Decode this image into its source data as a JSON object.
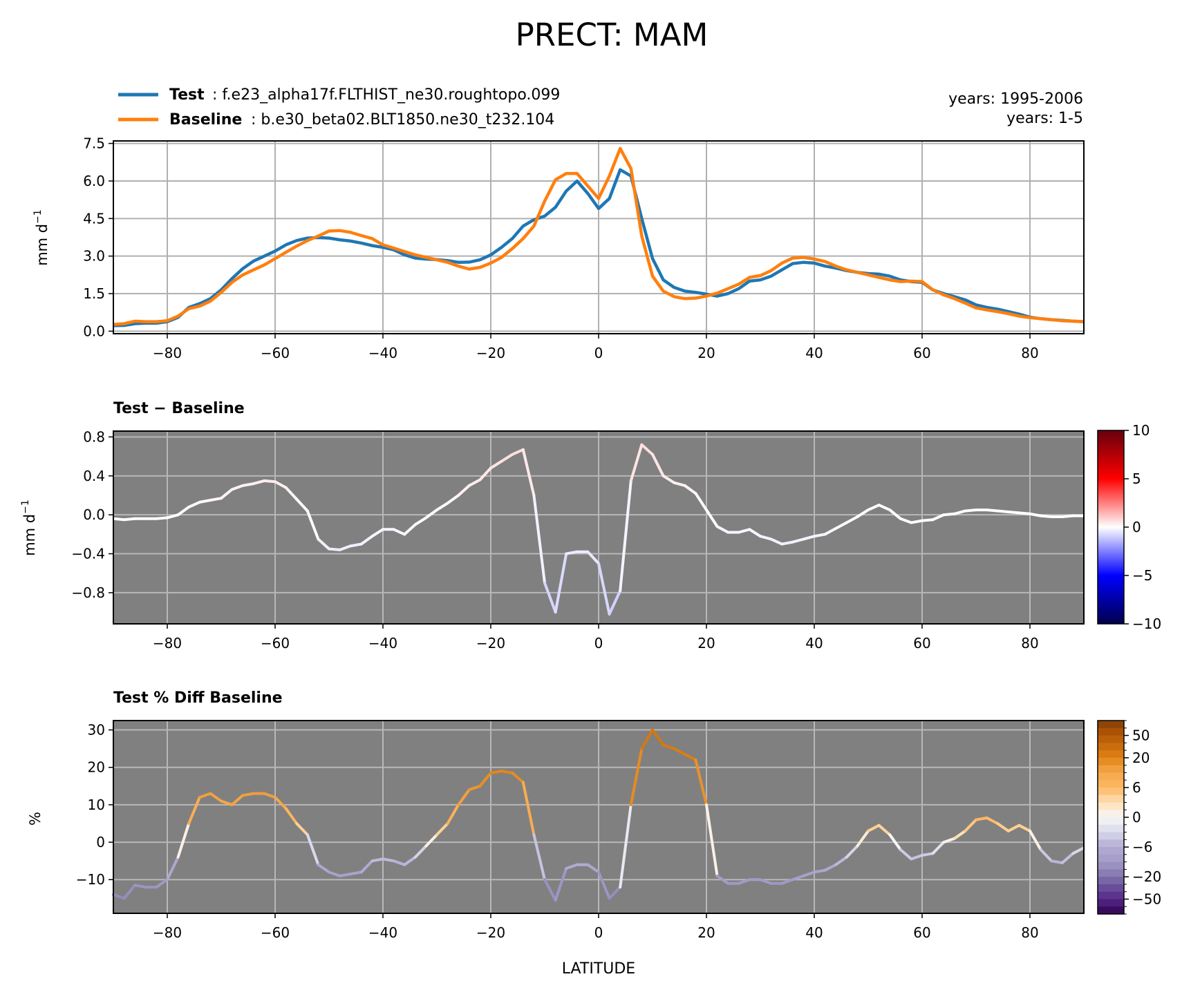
{
  "figure": {
    "title": "PRECT: MAM",
    "xlabel": "LATITUDE"
  },
  "legend": {
    "entries": [
      {
        "name": "Test",
        "case": ": f.e23_alpha17f.FLTHIST_ne30.roughtopo.099",
        "color": "#1f77b4"
      },
      {
        "name": "Baseline",
        "case": ": b.e30_beta02.BLT1850.ne30_t232.104",
        "color": "#ff7f0e"
      }
    ],
    "years_test": "years: 1995-2006",
    "years_baseline": "years: 1-5"
  },
  "chart_data": [
    {
      "type": "line",
      "panel": "mean",
      "ylabel": "mm d",
      "ylabel_sup": "−1",
      "xlim": [
        -90,
        90
      ],
      "ylim": [
        -0.1,
        7.6
      ],
      "xticks": [
        -80,
        -60,
        -40,
        -20,
        0,
        20,
        40,
        60,
        80
      ],
      "xtick_labels": [
        "−80",
        "−60",
        "−40",
        "−20",
        "0",
        "20",
        "40",
        "60",
        "80"
      ],
      "yticks": [
        0.0,
        1.5,
        3.0,
        4.5,
        6.0,
        7.5
      ],
      "ytick_labels": [
        "0.0",
        "1.5",
        "3.0",
        "4.5",
        "6.0",
        "7.5"
      ],
      "grid": true,
      "series": [
        {
          "name": "Test",
          "color": "#1f77b4",
          "x": [
            -90,
            -88,
            -86,
            -84,
            -82,
            -80,
            -78,
            -76,
            -74,
            -72,
            -70,
            -68,
            -66,
            -64,
            -62,
            -60,
            -58,
            -56,
            -54,
            -52,
            -50,
            -48,
            -46,
            -44,
            -42,
            -40,
            -38,
            -36,
            -34,
            -32,
            -30,
            -28,
            -26,
            -24,
            -22,
            -20,
            -18,
            -16,
            -14,
            -12,
            -10,
            -8,
            -6,
            -4,
            -2,
            0,
            2,
            4,
            6,
            8,
            10,
            12,
            14,
            16,
            18,
            20,
            22,
            24,
            26,
            28,
            30,
            32,
            34,
            36,
            38,
            40,
            42,
            44,
            46,
            48,
            50,
            52,
            54,
            56,
            58,
            60,
            62,
            64,
            66,
            68,
            70,
            72,
            74,
            76,
            78,
            80,
            82,
            84,
            86,
            88,
            90
          ],
          "y": [
            0.22,
            0.23,
            0.3,
            0.32,
            0.32,
            0.38,
            0.55,
            0.95,
            1.1,
            1.3,
            1.65,
            2.1,
            2.5,
            2.8,
            3.0,
            3.2,
            3.45,
            3.62,
            3.72,
            3.74,
            3.72,
            3.65,
            3.6,
            3.52,
            3.42,
            3.35,
            3.25,
            3.05,
            2.92,
            2.88,
            2.86,
            2.82,
            2.75,
            2.76,
            2.85,
            3.05,
            3.35,
            3.7,
            4.2,
            4.45,
            4.6,
            4.95,
            5.6,
            6.0,
            5.5,
            4.9,
            5.3,
            6.45,
            6.2,
            4.5,
            2.9,
            2.05,
            1.75,
            1.6,
            1.55,
            1.48,
            1.4,
            1.5,
            1.7,
            2.0,
            2.05,
            2.2,
            2.45,
            2.7,
            2.75,
            2.72,
            2.6,
            2.52,
            2.42,
            2.35,
            2.3,
            2.28,
            2.2,
            2.05,
            1.98,
            1.95,
            1.65,
            1.5,
            1.38,
            1.25,
            1.05,
            0.95,
            0.88,
            0.78,
            0.68,
            0.56,
            0.5,
            0.46,
            0.43,
            0.4,
            0.38
          ]
        },
        {
          "name": "Baseline",
          "color": "#ff7f0e",
          "x": [
            -90,
            -88,
            -86,
            -84,
            -82,
            -80,
            -78,
            -76,
            -74,
            -72,
            -70,
            -68,
            -66,
            -64,
            -62,
            -60,
            -58,
            -56,
            -54,
            -52,
            -50,
            -48,
            -46,
            -44,
            -42,
            -40,
            -38,
            -36,
            -34,
            -32,
            -30,
            -28,
            -26,
            -24,
            -22,
            -20,
            -18,
            -16,
            -14,
            -12,
            -10,
            -8,
            -6,
            -4,
            -2,
            0,
            2,
            4,
            6,
            8,
            10,
            12,
            14,
            16,
            18,
            20,
            22,
            24,
            26,
            28,
            30,
            32,
            34,
            36,
            38,
            40,
            42,
            44,
            46,
            48,
            50,
            52,
            54,
            56,
            58,
            60,
            62,
            64,
            66,
            68,
            70,
            72,
            74,
            76,
            78,
            80,
            82,
            84,
            86,
            88,
            90
          ],
          "y": [
            0.27,
            0.3,
            0.4,
            0.38,
            0.38,
            0.42,
            0.6,
            0.9,
            1.0,
            1.2,
            1.55,
            1.95,
            2.25,
            2.45,
            2.65,
            2.9,
            3.15,
            3.4,
            3.62,
            3.8,
            4.0,
            4.02,
            3.95,
            3.82,
            3.7,
            3.45,
            3.32,
            3.18,
            3.05,
            2.95,
            2.85,
            2.75,
            2.6,
            2.48,
            2.55,
            2.72,
            2.95,
            3.3,
            3.7,
            4.2,
            5.2,
            6.05,
            6.3,
            6.3,
            5.8,
            5.3,
            6.2,
            7.3,
            6.5,
            3.8,
            2.2,
            1.6,
            1.38,
            1.3,
            1.32,
            1.4,
            1.52,
            1.7,
            1.88,
            2.15,
            2.22,
            2.42,
            2.72,
            2.92,
            2.95,
            2.88,
            2.78,
            2.6,
            2.45,
            2.35,
            2.25,
            2.15,
            2.05,
            1.98,
            2.0,
            1.98,
            1.65,
            1.45,
            1.3,
            1.12,
            0.93,
            0.85,
            0.78,
            0.7,
            0.6,
            0.54,
            0.5,
            0.46,
            0.42,
            0.4,
            0.38
          ]
        }
      ]
    },
    {
      "type": "line",
      "panel": "difference",
      "title": "Test − Baseline",
      "ylabel": "mm d",
      "ylabel_sup": "−1",
      "xlim": [
        -90,
        90
      ],
      "ylim": [
        -1.12,
        0.86
      ],
      "xticks": [
        -80,
        -60,
        -40,
        -20,
        0,
        20,
        40,
        60,
        80
      ],
      "xtick_labels": [
        "−80",
        "−60",
        "−40",
        "−20",
        "0",
        "20",
        "40",
        "60",
        "80"
      ],
      "yticks": [
        -0.8,
        -0.4,
        0.0,
        0.4,
        0.8
      ],
      "ytick_labels": [
        "−0.8",
        "−0.4",
        "0.0",
        "0.4",
        "0.8"
      ],
      "grid": true,
      "background": "#808080",
      "colormap": "bwr",
      "color_range": [
        -10,
        10
      ],
      "colorbar_ticks": [
        10,
        5,
        0,
        -5,
        -10
      ],
      "colorbar_tick_labels": [
        "10",
        "5",
        "0",
        "−5",
        "−10"
      ],
      "series": [
        {
          "name": "Test − Baseline",
          "x": [
            -90,
            -88,
            -86,
            -84,
            -82,
            -80,
            -78,
            -76,
            -74,
            -72,
            -70,
            -68,
            -66,
            -64,
            -62,
            -60,
            -58,
            -56,
            -54,
            -52,
            -50,
            -48,
            -46,
            -44,
            -42,
            -40,
            -38,
            -36,
            -34,
            -32,
            -30,
            -28,
            -26,
            -24,
            -22,
            -20,
            -18,
            -16,
            -14,
            -12,
            -10,
            -8,
            -6,
            -4,
            -2,
            0,
            2,
            4,
            6,
            8,
            10,
            12,
            14,
            16,
            18,
            20,
            22,
            24,
            26,
            28,
            30,
            32,
            34,
            36,
            38,
            40,
            42,
            44,
            46,
            48,
            50,
            52,
            54,
            56,
            58,
            60,
            62,
            64,
            66,
            68,
            70,
            72,
            74,
            76,
            78,
            80,
            82,
            84,
            86,
            88,
            90
          ],
          "y": [
            -0.04,
            -0.05,
            -0.04,
            -0.04,
            -0.04,
            -0.03,
            0.0,
            0.08,
            0.13,
            0.15,
            0.17,
            0.26,
            0.3,
            0.32,
            0.35,
            0.34,
            0.28,
            0.16,
            0.04,
            -0.25,
            -0.35,
            -0.36,
            -0.32,
            -0.3,
            -0.22,
            -0.15,
            -0.15,
            -0.2,
            -0.1,
            -0.03,
            0.05,
            0.12,
            0.2,
            0.3,
            0.36,
            0.48,
            0.55,
            0.62,
            0.67,
            0.2,
            -0.7,
            -1.0,
            -0.4,
            -0.38,
            -0.38,
            -0.5,
            -1.02,
            -0.78,
            0.35,
            0.72,
            0.62,
            0.4,
            0.33,
            0.3,
            0.22,
            0.05,
            -0.12,
            -0.18,
            -0.18,
            -0.15,
            -0.22,
            -0.25,
            -0.3,
            -0.28,
            -0.25,
            -0.22,
            -0.2,
            -0.14,
            -0.08,
            -0.02,
            0.05,
            0.1,
            0.05,
            -0.04,
            -0.08,
            -0.06,
            -0.05,
            0.0,
            0.01,
            0.04,
            0.05,
            0.05,
            0.04,
            0.03,
            0.02,
            0.01,
            -0.01,
            -0.02,
            -0.02,
            -0.01,
            -0.01
          ]
        }
      ]
    },
    {
      "type": "line",
      "panel": "percent_difference",
      "title": "Test % Diff Baseline",
      "ylabel": "%",
      "xlabel": "LATITUDE",
      "xlim": [
        -90,
        90
      ],
      "ylim": [
        -19,
        32.5
      ],
      "xticks": [
        -80,
        -60,
        -40,
        -20,
        0,
        20,
        40,
        60,
        80
      ],
      "xtick_labels": [
        "−80",
        "−60",
        "−40",
        "−20",
        "0",
        "20",
        "40",
        "60",
        "80"
      ],
      "yticks": [
        -10,
        0,
        10,
        20,
        30
      ],
      "ytick_labels": [
        "−10",
        "0",
        "10",
        "20",
        "30"
      ],
      "grid": true,
      "background": "#808080",
      "colormap": "PuOr_r",
      "color_range": [
        -100,
        100
      ],
      "colorbar_ticks": [
        50,
        20,
        6,
        0,
        -6,
        -20,
        -50
      ],
      "colorbar_tick_labels": [
        "50",
        "20",
        "6",
        "0",
        "−6",
        "−20",
        "−50"
      ],
      "series": [
        {
          "name": "Test % Diff Baseline",
          "x": [
            -90,
            -88,
            -86,
            -84,
            -82,
            -80,
            -78,
            -76,
            -74,
            -72,
            -70,
            -68,
            -66,
            -64,
            -62,
            -60,
            -58,
            -56,
            -54,
            -52,
            -50,
            -48,
            -46,
            -44,
            -42,
            -40,
            -38,
            -36,
            -34,
            -32,
            -30,
            -28,
            -26,
            -24,
            -22,
            -20,
            -18,
            -16,
            -14,
            -12,
            -10,
            -8,
            -6,
            -4,
            -2,
            0,
            2,
            4,
            6,
            8,
            10,
            12,
            14,
            16,
            18,
            20,
            22,
            24,
            26,
            28,
            30,
            32,
            34,
            36,
            38,
            40,
            42,
            44,
            46,
            48,
            50,
            52,
            54,
            56,
            58,
            60,
            62,
            64,
            66,
            68,
            70,
            72,
            74,
            76,
            78,
            80,
            82,
            84,
            86,
            88,
            90
          ],
          "y": [
            -14,
            -15,
            -11.5,
            -12,
            -12,
            -10,
            -4,
            5,
            12,
            13,
            11,
            10,
            12.5,
            13,
            13,
            12,
            9,
            5,
            2,
            -6,
            -8,
            -9,
            -8.5,
            -8,
            -5,
            -4.5,
            -5,
            -6,
            -4,
            -1,
            2,
            5,
            10,
            14,
            15,
            18.5,
            19,
            18.5,
            16,
            2,
            -10,
            -15.5,
            -7,
            -6,
            -6,
            -8,
            -15,
            -12,
            10,
            25,
            30,
            26,
            25,
            23.5,
            22,
            10,
            -9,
            -11,
            -11,
            -10,
            -10,
            -11,
            -11,
            -10,
            -9,
            -8,
            -7.5,
            -6,
            -4,
            -1,
            3,
            4.5,
            2,
            -2,
            -4.5,
            -3.5,
            -3,
            0,
            1,
            3,
            6,
            6.5,
            5,
            3,
            4.5,
            3,
            -2,
            -5,
            -5.5,
            -3,
            -1.5
          ]
        }
      ]
    }
  ]
}
